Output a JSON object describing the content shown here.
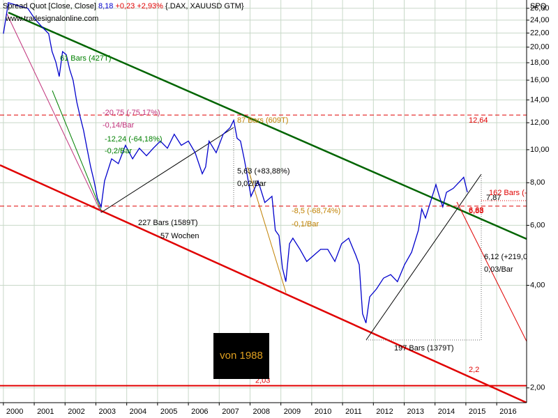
{
  "chart_data": {
    "type": "line",
    "title": "Spread Quot [Close, Close]",
    "last": "8,18",
    "change": "+0,23 +2,93%",
    "symbols": "{.DAX, XAUUSD GTM}",
    "source": "www.tradesignalonline.com",
    "axis_name": "SPQ",
    "box_text": "von 1988",
    "color": "#0000cc",
    "log_scale": true,
    "grid": true,
    "x": [
      2000.0,
      2000.16,
      2000.34,
      2000.57,
      2000.79,
      2001.02,
      2001.24,
      2001.47,
      2001.58,
      2001.7,
      2001.81,
      2001.92,
      2002.04,
      2002.15,
      2002.26,
      2002.38,
      2002.49,
      2002.6,
      2002.71,
      2002.83,
      2002.94,
      2003.05,
      2003.17,
      2003.28,
      2003.51,
      2003.73,
      2003.96,
      2004.19,
      2004.41,
      2004.64,
      2004.86,
      2005.09,
      2005.32,
      2005.54,
      2005.77,
      2006.0,
      2006.22,
      2006.45,
      2006.56,
      2006.67,
      2006.9,
      2007.13,
      2007.35,
      2007.47,
      2007.58,
      2007.69,
      2007.81,
      2007.92,
      2008.03,
      2008.26,
      2008.48,
      2008.71,
      2008.82,
      2008.94,
      2009.05,
      2009.16,
      2009.28,
      2009.39,
      2009.62,
      2009.84,
      2010.07,
      2010.29,
      2010.52,
      2010.75,
      2010.97,
      2011.2,
      2011.43,
      2011.54,
      2011.65,
      2011.76,
      2011.88,
      2012.1,
      2012.33,
      2012.56,
      2012.78,
      2013.01,
      2013.24,
      2013.46,
      2013.57,
      2013.69,
      2013.91,
      2014.03,
      2014.14,
      2014.25,
      2014.37,
      2014.59,
      2014.82,
      2014.93,
      2015.05
    ],
    "values": [
      21.9,
      27.0,
      26.7,
      26.3,
      26.0,
      24.2,
      23.0,
      21.9,
      19.4,
      18.1,
      16.4,
      19.4,
      19.0,
      17.2,
      16.0,
      13.8,
      12.5,
      11.4,
      10.1,
      8.9,
      8.1,
      7.2,
      6.8,
      8.1,
      9.4,
      9.1,
      10.3,
      9.4,
      10.1,
      9.6,
      10.1,
      10.6,
      10.1,
      11.1,
      10.3,
      10.6,
      9.8,
      8.5,
      8.9,
      10.6,
      9.8,
      11.1,
      11.6,
      12.2,
      10.8,
      10.6,
      9.4,
      8.3,
      7.3,
      8.1,
      7.0,
      7.3,
      5.8,
      5.6,
      4.5,
      4.1,
      5.3,
      5.5,
      5.1,
      4.7,
      4.9,
      5.1,
      5.1,
      4.7,
      5.3,
      5.5,
      4.9,
      4.6,
      3.3,
      3.1,
      3.7,
      3.9,
      4.2,
      4.3,
      4.1,
      4.6,
      5.0,
      5.8,
      6.7,
      6.3,
      7.3,
      7.9,
      7.3,
      6.8,
      7.5,
      7.7,
      8.1,
      8.3,
      7.5
    ],
    "xlim": [
      1999.89,
      2016.97
    ],
    "ylim": [
      1.81,
      27.5
    ],
    "xticks": [
      2000,
      2001,
      2002,
      2003,
      2004,
      2005,
      2006,
      2007,
      2008,
      2009,
      2010,
      2011,
      2012,
      2013,
      2014,
      2015,
      2016
    ],
    "yticks": [
      {
        "value": 26,
        "label": "26,00"
      },
      {
        "value": 24,
        "label": "24,00"
      },
      {
        "value": 22,
        "label": "22,00"
      },
      {
        "value": 20,
        "label": "20,00"
      },
      {
        "value": 18,
        "label": "18,00"
      },
      {
        "value": 16,
        "label": "16,00"
      },
      {
        "value": 14,
        "label": "14,00"
      },
      {
        "value": 12,
        "label": "12,00"
      },
      {
        "value": 10,
        "label": "10,00"
      },
      {
        "value": 8,
        "label": "8,00"
      },
      {
        "value": 6,
        "label": "6,00"
      },
      {
        "value": 4,
        "label": "4,00"
      },
      {
        "value": 2,
        "label": "2,00"
      }
    ],
    "levels": [
      {
        "value": 12.64,
        "label": "12,64",
        "color": "#e00000",
        "dashed": true
      },
      {
        "value": 6.83,
        "label": "6,83",
        "color": "#e00000",
        "dashed": true
      },
      {
        "value": 2.03,
        "label": "2,03",
        "color": "#e00000",
        "dashed": false
      }
    ],
    "annotations": [
      {
        "text": "61 Bars (427T)",
        "color": "#008000"
      },
      {
        "text": "-20,75 (-75,17%)",
        "color": "#c0307a"
      },
      {
        "text": "-0,14/Bar",
        "color": "#c0307a"
      },
      {
        "text": "-12,24 (-64,18%)",
        "color": "#008000"
      },
      {
        "text": "-0,2/Bar",
        "color": "#008000"
      },
      {
        "text": "87 Bars (609T)",
        "color": "#c08000"
      },
      {
        "text": "5,63 (+83,88%)",
        "color": "#000000"
      },
      {
        "text": "0,02/Bar",
        "color": "#000000"
      },
      {
        "text": "-8,5 (-68,74%)",
        "color": "#c08000"
      },
      {
        "text": "-0,1/Bar",
        "color": "#c08000"
      },
      {
        "text": "227 Bars (1589T)",
        "color": "#000000"
      },
      {
        "text": "57 Wochen",
        "color": "#000000"
      },
      {
        "text": "197 Bars (1379T)",
        "color": "#000000"
      },
      {
        "text": "6,12 (+219,0",
        "color": "#000000"
      },
      {
        "text": "0,03/Bar",
        "color": "#000000"
      },
      {
        "text": "7,87",
        "color": "#000000"
      },
      {
        "text": "162 Bars (-",
        "color": "#e00000"
      },
      {
        "text": "6,68",
        "color": "#e00000"
      },
      {
        "text": "2,2",
        "color": "#e00000"
      }
    ]
  }
}
